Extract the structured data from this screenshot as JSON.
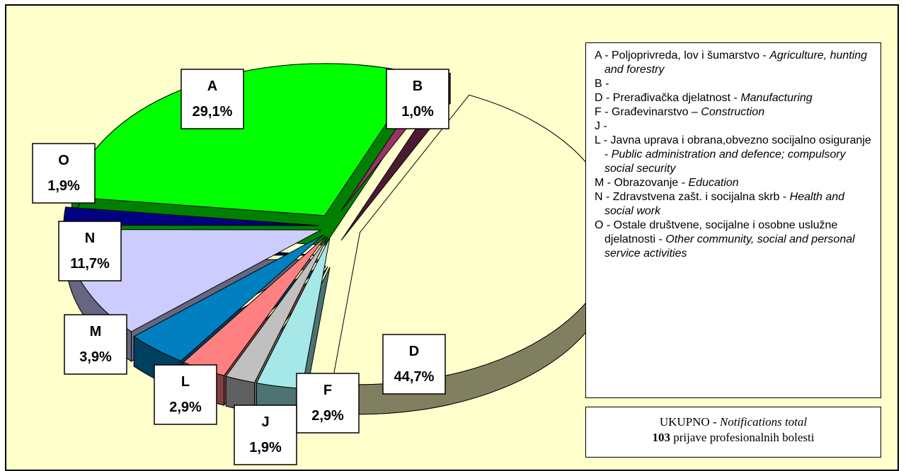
{
  "chart_data": {
    "type": "pie",
    "categories": [
      "A",
      "B",
      "D",
      "F",
      "J",
      "L",
      "M",
      "N",
      "O"
    ],
    "values": [
      29.1,
      1.0,
      44.7,
      2.9,
      1.9,
      2.9,
      3.9,
      11.7,
      1.9
    ],
    "value_labels": [
      "29,1%",
      "1,0%",
      "44,7%",
      "2,9%",
      "1,9%",
      "2,9%",
      "3,9%",
      "11,7%",
      "1,9%"
    ],
    "colors": [
      "#00ff00",
      "#993366",
      "#ffffcc",
      "#a6e8e8",
      "#c0c0c0",
      "#ff8080",
      "#0080c0",
      "#ccccff",
      "#000080"
    ],
    "side_colors": [
      "#008000",
      "#4d1a33",
      "#808060",
      "#4d7373",
      "#606060",
      "#804040",
      "#004060",
      "#666680",
      "#000040"
    ],
    "legend": [
      {
        "label": "A - Poljoprivreda, lov i šumarstvo -",
        "italic": "Agriculture, hunting and forestry"
      },
      {
        "label": "B -"
      },
      {
        "label": "D - Prerađivačka djelatnost -",
        "italic": "Manufacturing"
      },
      {
        "label": "F - Građevinarstvo –",
        "italic": "Construction"
      },
      {
        "label": "J -"
      },
      {
        "label": "L - Javna uprava i obrana,obvezno socijalno osiguranje -",
        "italic": "Public administration and defence; compulsory social security"
      },
      {
        "label": "M - Obrazovanje -",
        "italic": "Education"
      },
      {
        "label": "N  - Zdravstvena zašt. i socijalna skrb -",
        "italic": "Health and social work"
      },
      {
        "label": "O - Ostale društvene, socijalne i osobne uslužne djelatnosti -",
        "italic": "Other community, social and personal service activities"
      }
    ],
    "total": {
      "label": "UKUPNO -",
      "italic": "Notifications total",
      "count": 103,
      "text": "prijave profesionalnih bolesti"
    }
  }
}
